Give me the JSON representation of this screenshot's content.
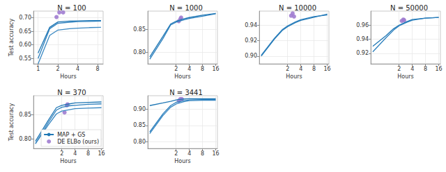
{
  "chart_data": [
    {
      "type": "line",
      "title": "N = 100",
      "x_label": "Hours",
      "y_label": "Test accuracy",
      "log": "x",
      "grid": true,
      "xlim": [
        0.85,
        9.7
      ],
      "xticks": [
        1,
        2,
        4,
        8
      ],
      "ylim": [
        0.53,
        0.725
      ],
      "yticks": [
        0.55,
        {
          "value": 0.6,
          "label": "0.60"
        },
        0.65,
        {
          "value": 0.7,
          "label": "0.70"
        }
      ],
      "series": [
        {
          "name": "MAP + GS",
          "type": "line",
          "color": "#1f77b4",
          "x": [
            1,
            1.5,
            2,
            3,
            4,
            6,
            9
          ],
          "values": [
            0.57,
            0.665,
            0.685,
            0.688,
            0.689,
            0.69,
            0.69
          ]
        },
        {
          "name": "MAP + GS",
          "type": "line",
          "color": "#2b7fbd",
          "x": [
            1,
            1.5,
            2,
            3,
            4,
            6,
            9
          ],
          "values": [
            0.55,
            0.66,
            0.68,
            0.684,
            0.686,
            0.687,
            0.688
          ]
        },
        {
          "name": "MAP + GS",
          "type": "line",
          "color": "#3a88c2",
          "x": [
            1,
            1.5,
            2,
            3,
            4,
            6,
            9
          ],
          "values": [
            0.53,
            0.635,
            0.655,
            0.66,
            0.662,
            0.664,
            0.665
          ]
        },
        {
          "name": "DE ELBo (ours)",
          "type": "scatter",
          "marker": "circle",
          "color": "#a07cd0",
          "x": [
            1.9,
            2.1,
            2.4
          ],
          "values": [
            0.703,
            0.72,
            0.72
          ]
        }
      ]
    },
    {
      "type": "line",
      "title": "N = 1000",
      "x_label": "Hours",
      "log": "x",
      "grid": true,
      "xlim": [
        0.45,
        17.5
      ],
      "xticks": [
        2,
        4,
        8,
        16
      ],
      "ylim": [
        0.775,
        0.89
      ],
      "yticks": [
        {
          "value": 0.8,
          "label": "0.80"
        },
        0.85
      ],
      "series": [
        {
          "name": "MAP + GS",
          "type": "line",
          "color": "#1f77b4",
          "x": [
            0.5,
            1,
            1.5,
            2,
            3,
            4,
            8,
            16
          ],
          "values": [
            0.79,
            0.835,
            0.862,
            0.868,
            0.873,
            0.876,
            0.881,
            0.885
          ]
        },
        {
          "name": "MAP + GS",
          "type": "line",
          "color": "#2b7fbd",
          "x": [
            0.5,
            1,
            1.5,
            2,
            3,
            4,
            8,
            16
          ],
          "values": [
            0.785,
            0.83,
            0.86,
            0.866,
            0.871,
            0.874,
            0.879,
            0.884
          ]
        },
        {
          "name": "DE ELBo (ours)",
          "type": "scatter",
          "marker": "circle",
          "color": "#a07cd0",
          "x": [
            2.3,
            2.5,
            2.6
          ],
          "values": [
            0.868,
            0.873,
            0.876
          ]
        }
      ]
    },
    {
      "type": "line",
      "title": "N = 10000",
      "x_label": "Hours",
      "log": "x",
      "grid": true,
      "xlim": [
        0.45,
        17.5
      ],
      "xticks": [
        2,
        4,
        8,
        16
      ],
      "ylim": [
        0.89,
        0.958
      ],
      "yticks": [
        {
          "value": 0.9,
          "label": "0.90"
        },
        0.92,
        0.94
      ],
      "series": [
        {
          "name": "MAP + GS",
          "type": "line",
          "color": "#1f77b4",
          "x": [
            0.5,
            1,
            1.5,
            2,
            3,
            4,
            8,
            16
          ],
          "values": [
            0.9,
            0.922,
            0.933,
            0.938,
            0.943,
            0.946,
            0.95,
            0.954
          ]
        },
        {
          "name": "MAP + GS",
          "type": "line",
          "color": "#2b7fbd",
          "x": [
            0.5,
            1,
            1.5,
            2,
            3,
            4,
            8,
            16
          ],
          "values": [
            0.901,
            0.923,
            0.934,
            0.939,
            0.944,
            0.947,
            0.951,
            0.953
          ]
        },
        {
          "name": "DE ELBo (ours)",
          "type": "scatter",
          "marker": "circle",
          "color": "#a07cd0",
          "x": [
            2.4,
            2.6,
            2.8
          ],
          "values": [
            0.952,
            0.955,
            0.951
          ]
        }
      ]
    },
    {
      "type": "line",
      "title": "N = 50000",
      "x_label": "Hours",
      "log": "x",
      "grid": true,
      "xlim": [
        0.45,
        17.5
      ],
      "xticks": [
        2,
        4,
        8,
        16
      ],
      "ylim": [
        0.905,
        0.98
      ],
      "yticks": [
        0.92,
        0.94,
        0.96
      ],
      "series": [
        {
          "name": "MAP + GS",
          "type": "line",
          "color": "#1f77b4",
          "x": [
            0.5,
            1,
            1.5,
            2,
            3,
            4,
            8,
            16
          ],
          "values": [
            0.93,
            0.945,
            0.955,
            0.96,
            0.965,
            0.968,
            0.97,
            0.971
          ]
        },
        {
          "name": "MAP + GS",
          "type": "line",
          "color": "#2b7fbd",
          "x": [
            0.5,
            1,
            1.5,
            2,
            3,
            4,
            8,
            16
          ],
          "values": [
            0.922,
            0.942,
            0.953,
            0.959,
            0.964,
            0.967,
            0.97,
            0.971
          ]
        },
        {
          "name": "DE ELBo (ours)",
          "type": "scatter",
          "marker": "circle",
          "color": "#a07cd0",
          "x": [
            2.3,
            2.5,
            2.6
          ],
          "values": [
            0.966,
            0.968,
            0.967
          ]
        }
      ]
    },
    {
      "type": "line",
      "title": "N = 370",
      "x_label": "Hours",
      "y_label": "Test accuracy",
      "log": "x",
      "grid": true,
      "legend": "lower right",
      "xlim": [
        0.45,
        17.5
      ],
      "xticks": [
        2,
        4,
        8,
        16
      ],
      "ylim": [
        0.78,
        0.89
      ],
      "yticks": [
        {
          "value": 0.8,
          "label": "0.80"
        },
        0.85
      ],
      "series": [
        {
          "name": "MAP + GS",
          "type": "line",
          "color": "#1f77b4",
          "x": [
            0.5,
            1,
            1.5,
            2,
            3,
            4,
            8,
            16
          ],
          "values": [
            0.795,
            0.84,
            0.865,
            0.87,
            0.873,
            0.875,
            0.876,
            0.877
          ]
        },
        {
          "name": "MAP + GS",
          "type": "line",
          "color": "#2b7fbd",
          "x": [
            0.5,
            1,
            1.5,
            2,
            3,
            4,
            8,
            16
          ],
          "values": [
            0.79,
            0.835,
            0.86,
            0.866,
            0.869,
            0.87,
            0.872,
            0.873
          ]
        },
        {
          "name": "MAP + GS",
          "type": "line",
          "color": "#3a88c2",
          "x": [
            0.5,
            1,
            1.5,
            2,
            3,
            4,
            8,
            16
          ],
          "values": [
            0.79,
            0.83,
            0.852,
            0.858,
            0.861,
            0.863,
            0.864,
            0.865
          ]
        },
        {
          "name": "DE ELBo (ours)",
          "type": "scatter",
          "marker": "circle",
          "color": "#a07cd0",
          "x": [
            2.3,
            2.6,
            2.7
          ],
          "values": [
            0.855,
            0.87,
            0.872
          ]
        }
      ]
    },
    {
      "type": "line",
      "title": "N = 3441",
      "x_label": "Hours",
      "log": "x",
      "grid": true,
      "xlim": [
        0.45,
        17.5
      ],
      "xticks": [
        2,
        4,
        8,
        16
      ],
      "ylim": [
        0.78,
        0.94
      ],
      "yticks": [
        {
          "value": 0.8,
          "label": "0.80"
        },
        0.85,
        {
          "value": 0.9,
          "label": "0.90"
        }
      ],
      "series": [
        {
          "name": "MAP + GS",
          "type": "line",
          "color": "#1f77b4",
          "x": [
            0.5,
            1,
            1.5,
            2,
            3,
            4,
            8,
            16
          ],
          "values": [
            0.91,
            0.918,
            0.923,
            0.927,
            0.93,
            0.931,
            0.931,
            0.931
          ]
        },
        {
          "name": "MAP + GS",
          "type": "line",
          "color": "#2b7fbd",
          "x": [
            0.5,
            1,
            1.5,
            2,
            3,
            4,
            8,
            16
          ],
          "values": [
            0.83,
            0.885,
            0.91,
            0.92,
            0.925,
            0.927,
            0.928,
            0.928
          ]
        },
        {
          "name": "MAP + GS",
          "type": "line",
          "color": "#3a88c2",
          "x": [
            0.5,
            1,
            1.5,
            2,
            3,
            4,
            8,
            16
          ],
          "values": [
            0.825,
            0.88,
            0.905,
            0.915,
            0.922,
            0.925,
            0.926,
            0.926
          ]
        },
        {
          "name": "DE ELBo (ours)",
          "type": "scatter",
          "marker": "circle",
          "color": "#a07cd0",
          "x": [
            2.3,
            2.5,
            2.7
          ],
          "values": [
            0.925,
            0.93,
            0.93
          ]
        }
      ]
    }
  ]
}
